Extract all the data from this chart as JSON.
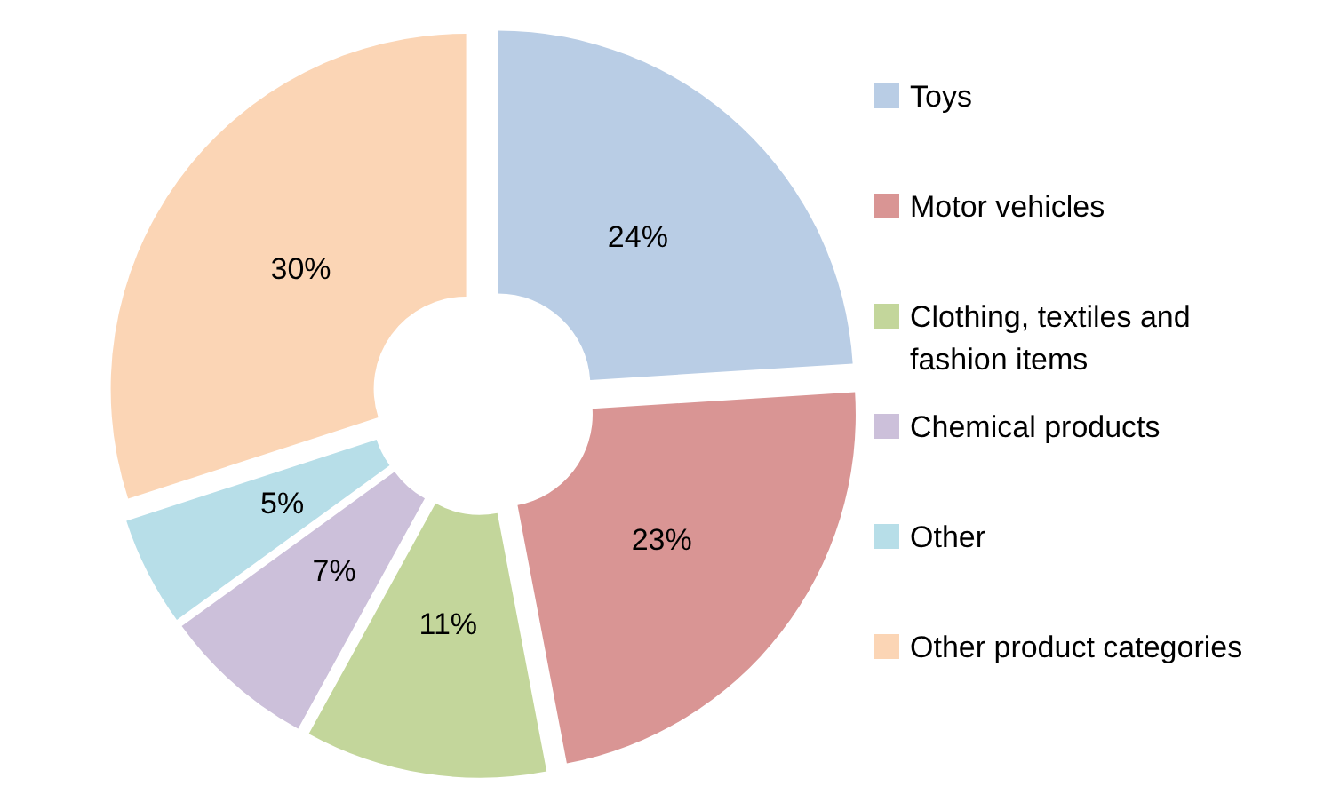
{
  "chart_data": {
    "type": "donut",
    "categories": [
      "Toys",
      "Motor vehicles",
      "Clothing, textiles and fashion items",
      "Chemical products",
      "Other",
      "Other product categories"
    ],
    "values": [
      24,
      23,
      11,
      7,
      5,
      30
    ],
    "colors": [
      "#b9cde5",
      "#d99594",
      "#c3d69b",
      "#ccc0da",
      "#b7dee8",
      "#fbd5b5"
    ],
    "value_labels": [
      "24%",
      "23%",
      "11%",
      "7%",
      "5%",
      "30%"
    ],
    "legend": "right"
  }
}
